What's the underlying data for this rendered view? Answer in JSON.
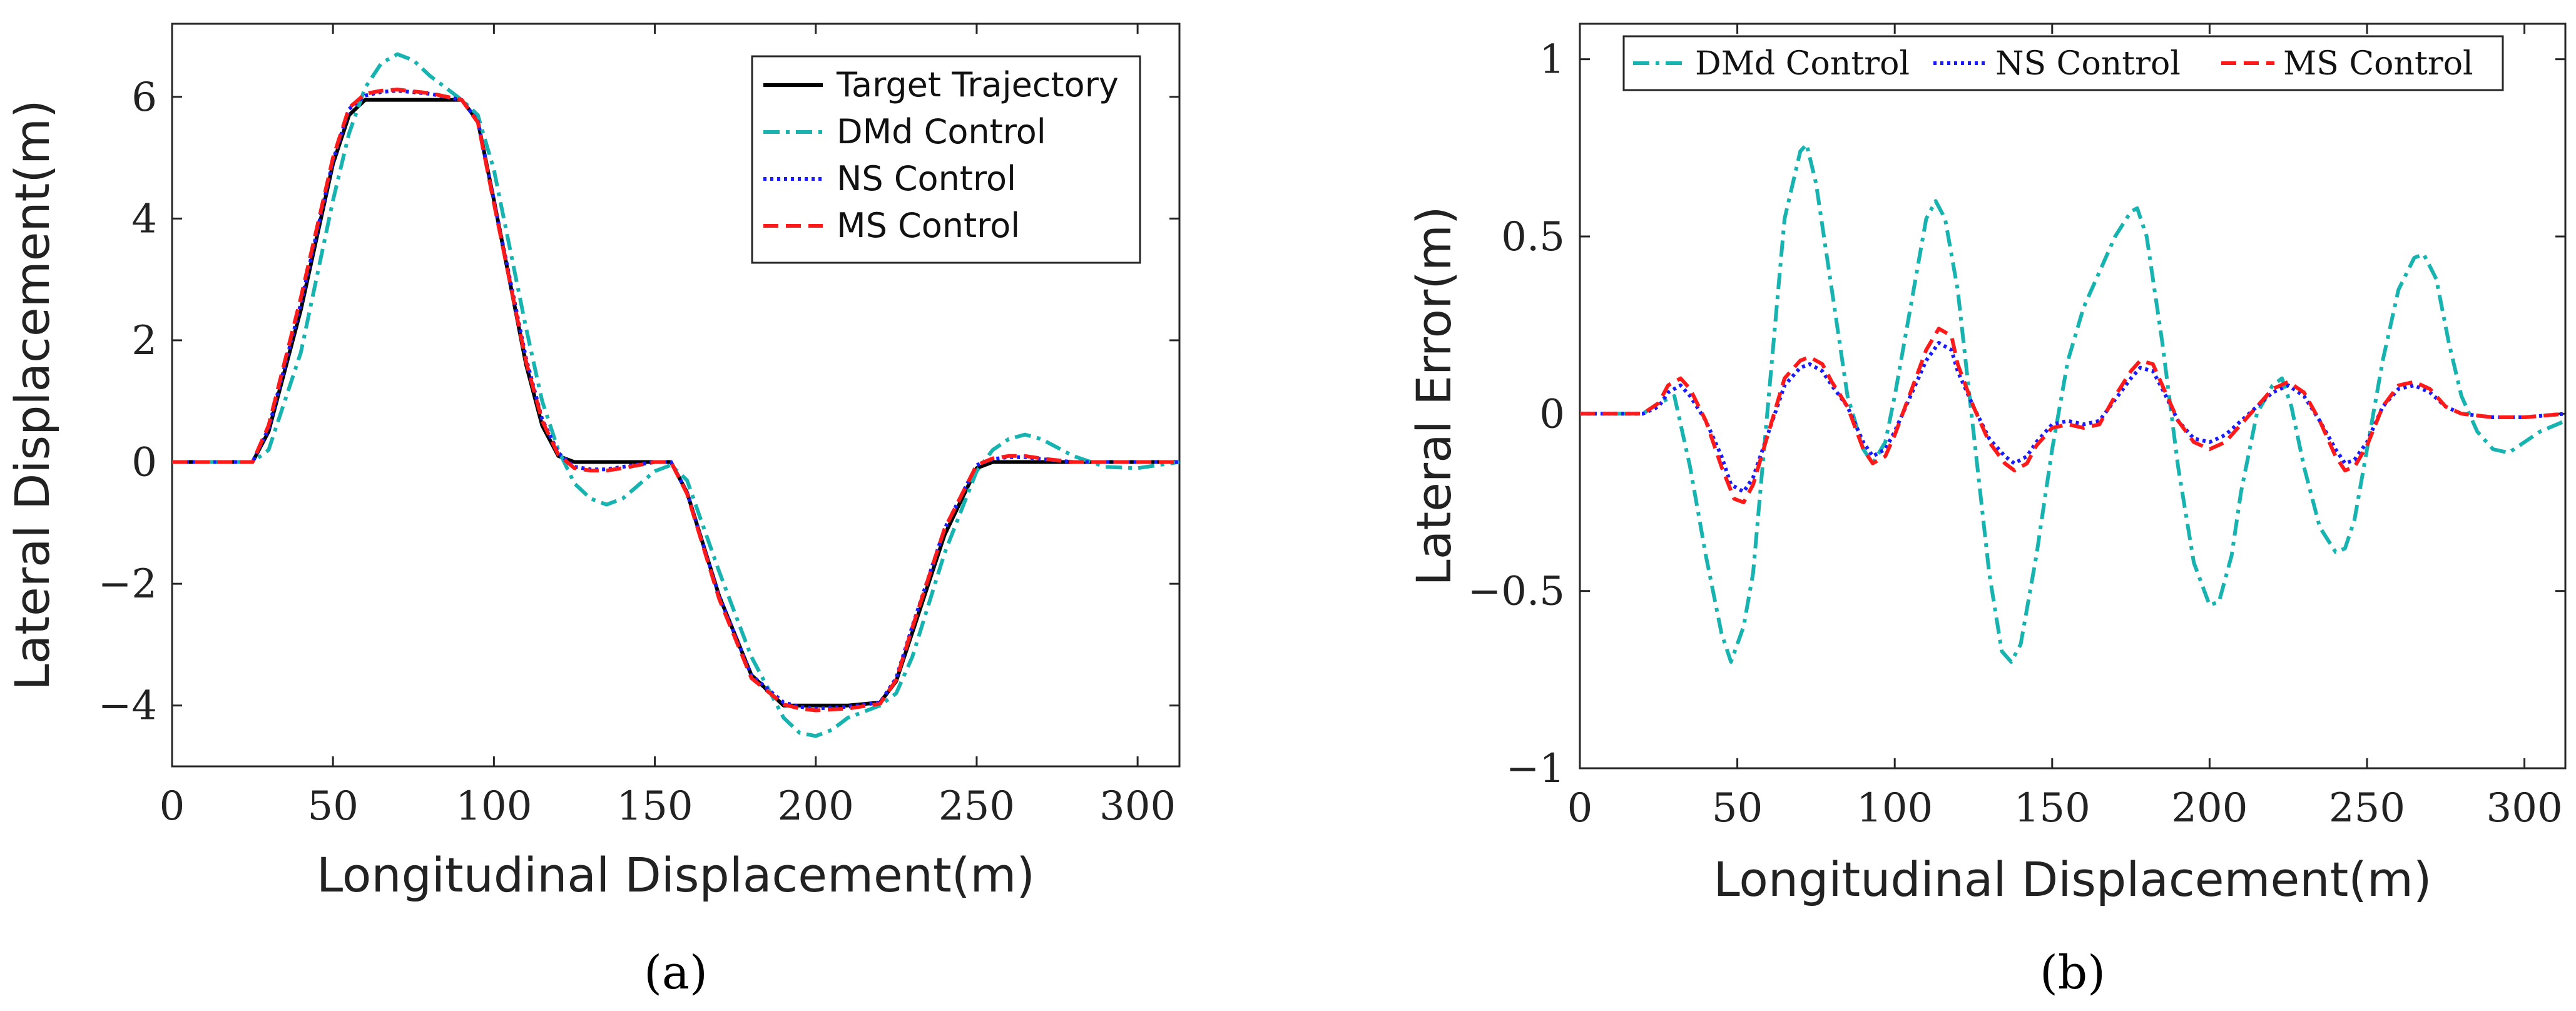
{
  "chart_data": [
    {
      "type": "line",
      "panel": "a",
      "caption": "(a)",
      "xlabel": "Longitudinal Displacement(m)",
      "ylabel": "Lateral Displacement(m)",
      "xlim": [
        0,
        313
      ],
      "ylim": [
        -5,
        7.2
      ],
      "xticks": [
        0,
        50,
        100,
        150,
        200,
        250,
        300
      ],
      "xtick_labels": [
        "0",
        "50",
        "100",
        "150",
        "200",
        "250",
        "300"
      ],
      "yticks": [
        -4,
        -2,
        0,
        2,
        4,
        6
      ],
      "ytick_labels": [
        "−4",
        "−2",
        "0",
        "2",
        "4",
        "6"
      ],
      "legend_position": "top-right",
      "series": [
        {
          "name": "Target Trajectory",
          "color": "#000000",
          "style": "solid",
          "x": [
            0,
            25,
            30,
            40,
            50,
            55,
            60,
            65,
            70,
            80,
            90,
            95,
            100,
            110,
            115,
            120,
            125,
            130,
            140,
            150,
            155,
            160,
            170,
            180,
            190,
            195,
            200,
            210,
            220,
            225,
            230,
            240,
            250,
            255,
            260,
            270,
            280,
            290,
            300,
            313
          ],
          "y": [
            0,
            0,
            0.5,
            2.5,
            4.9,
            5.7,
            5.95,
            5.95,
            5.95,
            5.95,
            5.95,
            5.6,
            4.3,
            1.6,
            0.6,
            0.1,
            0,
            0,
            0,
            0,
            0,
            -0.5,
            -2.2,
            -3.5,
            -4.0,
            -4.0,
            -4.0,
            -4.0,
            -3.95,
            -3.6,
            -2.8,
            -1.2,
            -0.1,
            0,
            0,
            0,
            0,
            0,
            0,
            0
          ]
        },
        {
          "name": "DMd Control",
          "color": "#17b3b0",
          "style": "dashdot",
          "x": [
            0,
            25,
            30,
            40,
            50,
            55,
            60,
            65,
            70,
            75,
            80,
            90,
            95,
            100,
            110,
            115,
            120,
            125,
            130,
            135,
            140,
            150,
            155,
            160,
            170,
            180,
            190,
            195,
            200,
            205,
            210,
            220,
            225,
            230,
            240,
            250,
            255,
            260,
            265,
            270,
            280,
            290,
            300,
            313
          ],
          "y": [
            0,
            0,
            0.2,
            1.8,
            4.3,
            5.4,
            6.15,
            6.55,
            6.7,
            6.6,
            6.35,
            5.95,
            5.7,
            4.8,
            2.2,
            1.0,
            0.2,
            -0.35,
            -0.6,
            -0.7,
            -0.6,
            -0.15,
            -0.05,
            -0.3,
            -1.8,
            -3.2,
            -4.2,
            -4.45,
            -4.5,
            -4.4,
            -4.2,
            -4.0,
            -3.8,
            -3.2,
            -1.5,
            -0.15,
            0.2,
            0.38,
            0.45,
            0.38,
            0.1,
            -0.08,
            -0.1,
            0
          ]
        },
        {
          "name": "NS Control",
          "color": "#1a1aff",
          "style": "dotted",
          "x": [
            0,
            25,
            30,
            40,
            50,
            55,
            60,
            65,
            70,
            80,
            90,
            95,
            100,
            110,
            115,
            120,
            125,
            130,
            135,
            140,
            150,
            155,
            160,
            170,
            180,
            190,
            195,
            200,
            210,
            220,
            225,
            230,
            240,
            250,
            255,
            260,
            265,
            270,
            280,
            300,
            313
          ],
          "y": [
            0,
            0,
            0.55,
            2.6,
            4.95,
            5.8,
            6.02,
            6.08,
            6.1,
            6.05,
            5.95,
            5.6,
            4.3,
            1.7,
            0.7,
            0.15,
            -0.08,
            -0.12,
            -0.12,
            -0.08,
            0,
            0,
            -0.5,
            -2.2,
            -3.5,
            -3.95,
            -4.02,
            -4.05,
            -4.02,
            -3.95,
            -3.55,
            -2.7,
            -1.1,
            -0.05,
            0.05,
            0.08,
            0.08,
            0.05,
            0,
            0,
            0
          ]
        },
        {
          "name": "MS Control",
          "color": "#ff1a1a",
          "style": "dashed",
          "x": [
            0,
            25,
            30,
            40,
            50,
            55,
            60,
            65,
            70,
            80,
            90,
            95,
            100,
            110,
            115,
            120,
            125,
            130,
            135,
            140,
            150,
            155,
            160,
            170,
            180,
            190,
            195,
            200,
            210,
            220,
            225,
            230,
            240,
            250,
            255,
            260,
            265,
            270,
            280,
            300,
            313
          ],
          "y": [
            0,
            0,
            0.6,
            2.7,
            5.0,
            5.82,
            6.05,
            6.1,
            6.12,
            6.06,
            5.95,
            5.58,
            4.25,
            1.65,
            0.68,
            0.12,
            -0.1,
            -0.14,
            -0.14,
            -0.1,
            0,
            0,
            -0.52,
            -2.25,
            -3.55,
            -3.98,
            -4.05,
            -4.08,
            -4.05,
            -3.97,
            -3.58,
            -2.72,
            -1.1,
            -0.05,
            0.06,
            0.1,
            0.1,
            0.06,
            0,
            0,
            0
          ]
        }
      ]
    },
    {
      "type": "line",
      "panel": "b",
      "caption": "(b)",
      "xlabel": "Longitudinal Displacement(m)",
      "ylabel": "Lateral Error(m)",
      "xlim": [
        0,
        313
      ],
      "ylim": [
        -1,
        1.1
      ],
      "xticks": [
        0,
        50,
        100,
        150,
        200,
        250,
        300
      ],
      "xtick_labels": [
        "0",
        "50",
        "100",
        "150",
        "200",
        "250",
        "300"
      ],
      "yticks": [
        -1,
        -0.5,
        0,
        0.5,
        1
      ],
      "ytick_labels": [
        "−1",
        "−0.5",
        "0",
        "0.5",
        "1"
      ],
      "legend_position": "top",
      "series": [
        {
          "name": "DMd Control",
          "color": "#17b3b0",
          "style": "dashdot",
          "x": [
            0,
            20,
            25,
            30,
            35,
            40,
            45,
            48,
            52,
            55,
            60,
            65,
            70,
            72,
            75,
            80,
            85,
            90,
            93,
            97,
            100,
            105,
            110,
            113,
            116,
            120,
            125,
            130,
            134,
            137,
            140,
            145,
            150,
            155,
            160,
            165,
            170,
            175,
            177,
            180,
            185,
            190,
            195,
            200,
            203,
            207,
            210,
            215,
            220,
            223,
            226,
            230,
            235,
            240,
            243,
            246,
            250,
            255,
            260,
            265,
            268,
            272,
            276,
            280,
            285,
            290,
            295,
            300,
            305,
            313
          ],
          "y": [
            0,
            0,
            0.03,
            0.05,
            -0.15,
            -0.4,
            -0.62,
            -0.7,
            -0.6,
            -0.45,
            0.05,
            0.55,
            0.74,
            0.76,
            0.65,
            0.35,
            0.05,
            -0.1,
            -0.14,
            -0.08,
            0.05,
            0.3,
            0.55,
            0.6,
            0.55,
            0.35,
            -0.05,
            -0.45,
            -0.67,
            -0.7,
            -0.65,
            -0.4,
            -0.1,
            0.15,
            0.3,
            0.4,
            0.5,
            0.57,
            0.58,
            0.5,
            0.2,
            -0.15,
            -0.42,
            -0.54,
            -0.53,
            -0.4,
            -0.22,
            0,
            0.08,
            0.1,
            0.02,
            -0.15,
            -0.32,
            -0.39,
            -0.38,
            -0.3,
            -0.1,
            0.15,
            0.35,
            0.44,
            0.45,
            0.38,
            0.2,
            0.05,
            -0.05,
            -0.1,
            -0.11,
            -0.08,
            -0.05,
            -0.02
          ]
        },
        {
          "name": "NS Control",
          "color": "#1a1aff",
          "style": "dotted",
          "x": [
            0,
            20,
            25,
            28,
            32,
            35,
            40,
            45,
            48,
            52,
            55,
            60,
            65,
            70,
            73,
            77,
            80,
            85,
            90,
            93,
            97,
            100,
            105,
            110,
            114,
            118,
            120,
            125,
            130,
            135,
            138,
            142,
            145,
            150,
            155,
            160,
            165,
            170,
            175,
            178,
            182,
            185,
            190,
            195,
            200,
            205,
            210,
            215,
            220,
            225,
            230,
            235,
            240,
            243,
            246,
            250,
            255,
            260,
            265,
            270,
            275,
            280,
            290,
            300,
            313
          ],
          "y": [
            0,
            0,
            0.02,
            0.06,
            0.08,
            0.05,
            -0.02,
            -0.12,
            -0.2,
            -0.22,
            -0.18,
            -0.05,
            0.08,
            0.13,
            0.14,
            0.12,
            0.08,
            0.02,
            -0.08,
            -0.12,
            -0.1,
            -0.05,
            0.05,
            0.15,
            0.2,
            0.18,
            0.12,
            0.02,
            -0.07,
            -0.12,
            -0.14,
            -0.12,
            -0.08,
            -0.03,
            -0.02,
            -0.03,
            -0.02,
            0.04,
            0.1,
            0.13,
            0.12,
            0.07,
            -0.02,
            -0.07,
            -0.08,
            -0.06,
            -0.02,
            0.02,
            0.06,
            0.08,
            0.05,
            -0.02,
            -0.1,
            -0.14,
            -0.13,
            -0.08,
            0.02,
            0.07,
            0.08,
            0.06,
            0.02,
            0,
            -0.01,
            -0.01,
            0
          ]
        },
        {
          "name": "MS Control",
          "color": "#ff1a1a",
          "style": "dashed",
          "x": [
            0,
            20,
            25,
            28,
            32,
            35,
            40,
            45,
            49,
            52,
            55,
            60,
            65,
            70,
            73,
            77,
            80,
            85,
            90,
            93,
            97,
            100,
            105,
            110,
            114,
            118,
            120,
            125,
            130,
            135,
            138,
            142,
            145,
            150,
            155,
            160,
            165,
            170,
            175,
            178,
            182,
            185,
            190,
            195,
            200,
            205,
            210,
            215,
            220,
            225,
            230,
            235,
            240,
            243,
            246,
            250,
            255,
            260,
            265,
            270,
            275,
            280,
            290,
            300,
            313
          ],
          "y": [
            0,
            0,
            0.03,
            0.08,
            0.1,
            0.07,
            -0.02,
            -0.15,
            -0.24,
            -0.25,
            -0.2,
            -0.05,
            0.1,
            0.15,
            0.16,
            0.14,
            0.09,
            0.02,
            -0.1,
            -0.14,
            -0.12,
            -0.06,
            0.06,
            0.18,
            0.24,
            0.22,
            0.14,
            0.02,
            -0.08,
            -0.14,
            -0.16,
            -0.14,
            -0.09,
            -0.04,
            -0.03,
            -0.04,
            -0.03,
            0.05,
            0.12,
            0.15,
            0.14,
            0.08,
            -0.02,
            -0.08,
            -0.1,
            -0.08,
            -0.03,
            0.02,
            0.07,
            0.09,
            0.06,
            -0.02,
            -0.12,
            -0.16,
            -0.15,
            -0.09,
            0.02,
            0.08,
            0.09,
            0.07,
            0.02,
            0,
            -0.01,
            -0.01,
            0
          ]
        }
      ]
    }
  ]
}
